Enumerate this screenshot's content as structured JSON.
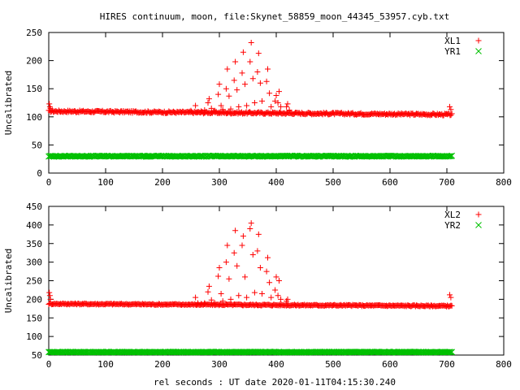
{
  "figure": {
    "title": "HIRES continuum, moon, file:Skynet_58859_moon_44345_53957.cyb.txt",
    "xlabel": "rel seconds : UT date 2020-01-11T04:15:30.240"
  },
  "chart_data": [
    {
      "type": "scatter",
      "ylabel": "Uncalibrated",
      "xlim": [
        0,
        800
      ],
      "ylim": [
        0,
        250
      ],
      "xticks": [
        "0",
        "100",
        "200",
        "300",
        "400",
        "500",
        "600",
        "700",
        "800"
      ],
      "yticks": [
        "0",
        "50",
        "100",
        "150",
        "200",
        "250"
      ],
      "legend_position": "top-right",
      "series": [
        {
          "name": "XL1",
          "marker": "plus",
          "color": "#ff0000",
          "baseline": {
            "x": [
              0,
              710
            ],
            "y": [
              110,
              104
            ]
          },
          "points": [
            [
              1,
              123
            ],
            [
              2,
              118
            ],
            [
              3,
              115
            ],
            [
              250,
              111
            ],
            [
              258,
              120
            ],
            [
              262,
              109
            ],
            [
              268,
              110
            ],
            [
              274,
              112
            ],
            [
              280,
              125
            ],
            [
              282,
              132
            ],
            [
              286,
              115
            ],
            [
              292,
              111
            ],
            [
              298,
              140
            ],
            [
              300,
              158
            ],
            [
              303,
              120
            ],
            [
              306,
              113
            ],
            [
              312,
              150
            ],
            [
              314,
              185
            ],
            [
              317,
              137
            ],
            [
              320,
              114
            ],
            [
              326,
              165
            ],
            [
              328,
              198
            ],
            [
              331,
              148
            ],
            [
              334,
              118
            ],
            [
              340,
              178
            ],
            [
              342,
              215
            ],
            [
              345,
              158
            ],
            [
              348,
              120
            ],
            [
              354,
              198
            ],
            [
              356,
              232
            ],
            [
              359,
              168
            ],
            [
              362,
              125
            ],
            [
              367,
              180
            ],
            [
              369,
              213
            ],
            [
              372,
              160
            ],
            [
              375,
              128
            ],
            [
              383,
              163
            ],
            [
              385,
              185
            ],
            [
              388,
              142
            ],
            [
              391,
              118
            ],
            [
              398,
              128
            ],
            [
              400,
              138
            ],
            [
              403,
              125
            ],
            [
              405,
              145
            ],
            [
              408,
              118
            ],
            [
              418,
              118
            ],
            [
              420,
              123
            ],
            [
              423,
              112
            ],
            [
              705,
              118
            ],
            [
              707,
              113
            ]
          ]
        },
        {
          "name": "YR1",
          "marker": "cross",
          "color": "#00c000",
          "baseline": {
            "x": [
              0,
              710
            ],
            "y": [
              30,
              30
            ]
          },
          "points": []
        }
      ]
    },
    {
      "type": "scatter",
      "ylabel": "Uncalibrated",
      "xlim": [
        0,
        800
      ],
      "ylim": [
        50,
        450
      ],
      "xticks": [
        "0",
        "100",
        "200",
        "300",
        "400",
        "500",
        "600",
        "700",
        "800"
      ],
      "yticks": [
        "50",
        "100",
        "150",
        "200",
        "250",
        "300",
        "350",
        "400",
        "450"
      ],
      "legend_position": "top-right",
      "series": [
        {
          "name": "XL2",
          "marker": "plus",
          "color": "#ff0000",
          "baseline": {
            "x": [
              0,
              710
            ],
            "y": [
              188,
              182
            ]
          },
          "points": [
            [
              1,
              218
            ],
            [
              2,
              210
            ],
            [
              3,
              200
            ],
            [
              258,
              205
            ],
            [
              262,
              190
            ],
            [
              268,
              188
            ],
            [
              274,
              190
            ],
            [
              280,
              220
            ],
            [
              282,
              235
            ],
            [
              286,
              198
            ],
            [
              292,
              190
            ],
            [
              298,
              262
            ],
            [
              300,
              285
            ],
            [
              303,
              215
            ],
            [
              306,
              195
            ],
            [
              312,
              300
            ],
            [
              314,
              345
            ],
            [
              317,
              255
            ],
            [
              320,
              200
            ],
            [
              326,
              325
            ],
            [
              328,
              385
            ],
            [
              331,
              290
            ],
            [
              334,
              210
            ],
            [
              340,
              345
            ],
            [
              342,
              370
            ],
            [
              345,
              260
            ],
            [
              348,
              205
            ],
            [
              354,
              390
            ],
            [
              356,
              405
            ],
            [
              359,
              320
            ],
            [
              362,
              218
            ],
            [
              367,
              330
            ],
            [
              369,
              375
            ],
            [
              372,
              285
            ],
            [
              375,
              215
            ],
            [
              383,
              275
            ],
            [
              385,
              312
            ],
            [
              388,
              245
            ],
            [
              391,
              205
            ],
            [
              398,
              225
            ],
            [
              400,
              260
            ],
            [
              403,
              210
            ],
            [
              405,
              250
            ],
            [
              408,
              200
            ],
            [
              418,
              195
            ],
            [
              420,
              200
            ],
            [
              705,
              212
            ],
            [
              707,
              205
            ]
          ]
        },
        {
          "name": "YR2",
          "marker": "cross",
          "color": "#00c000",
          "baseline": {
            "x": [
              0,
              710
            ],
            "y": [
              58,
              58
            ]
          },
          "points": []
        }
      ]
    }
  ]
}
